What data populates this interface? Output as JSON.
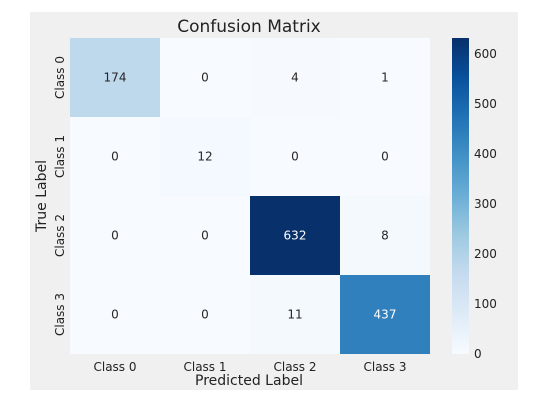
{
  "chart_data": {
    "type": "heatmap",
    "title": "Confusion Matrix",
    "xlabel": "Predicted Label",
    "ylabel": "True Label",
    "x_categories": [
      "Class 0",
      "Class 1",
      "Class 2",
      "Class 3"
    ],
    "y_categories": [
      "Class 0",
      "Class 1",
      "Class 2",
      "Class 3"
    ],
    "values": [
      [
        174,
        0,
        4,
        1
      ],
      [
        0,
        12,
        0,
        0
      ],
      [
        0,
        0,
        632,
        8
      ],
      [
        0,
        0,
        11,
        437
      ]
    ],
    "colorbar": {
      "min": 0,
      "max": 632,
      "ticks": [
        0,
        100,
        200,
        300,
        400,
        500,
        600
      ],
      "colormap": "Blues"
    },
    "colors": {
      "figure_background": "#f0f0f0",
      "low": "#f7fbff",
      "high": "#08306b"
    }
  }
}
